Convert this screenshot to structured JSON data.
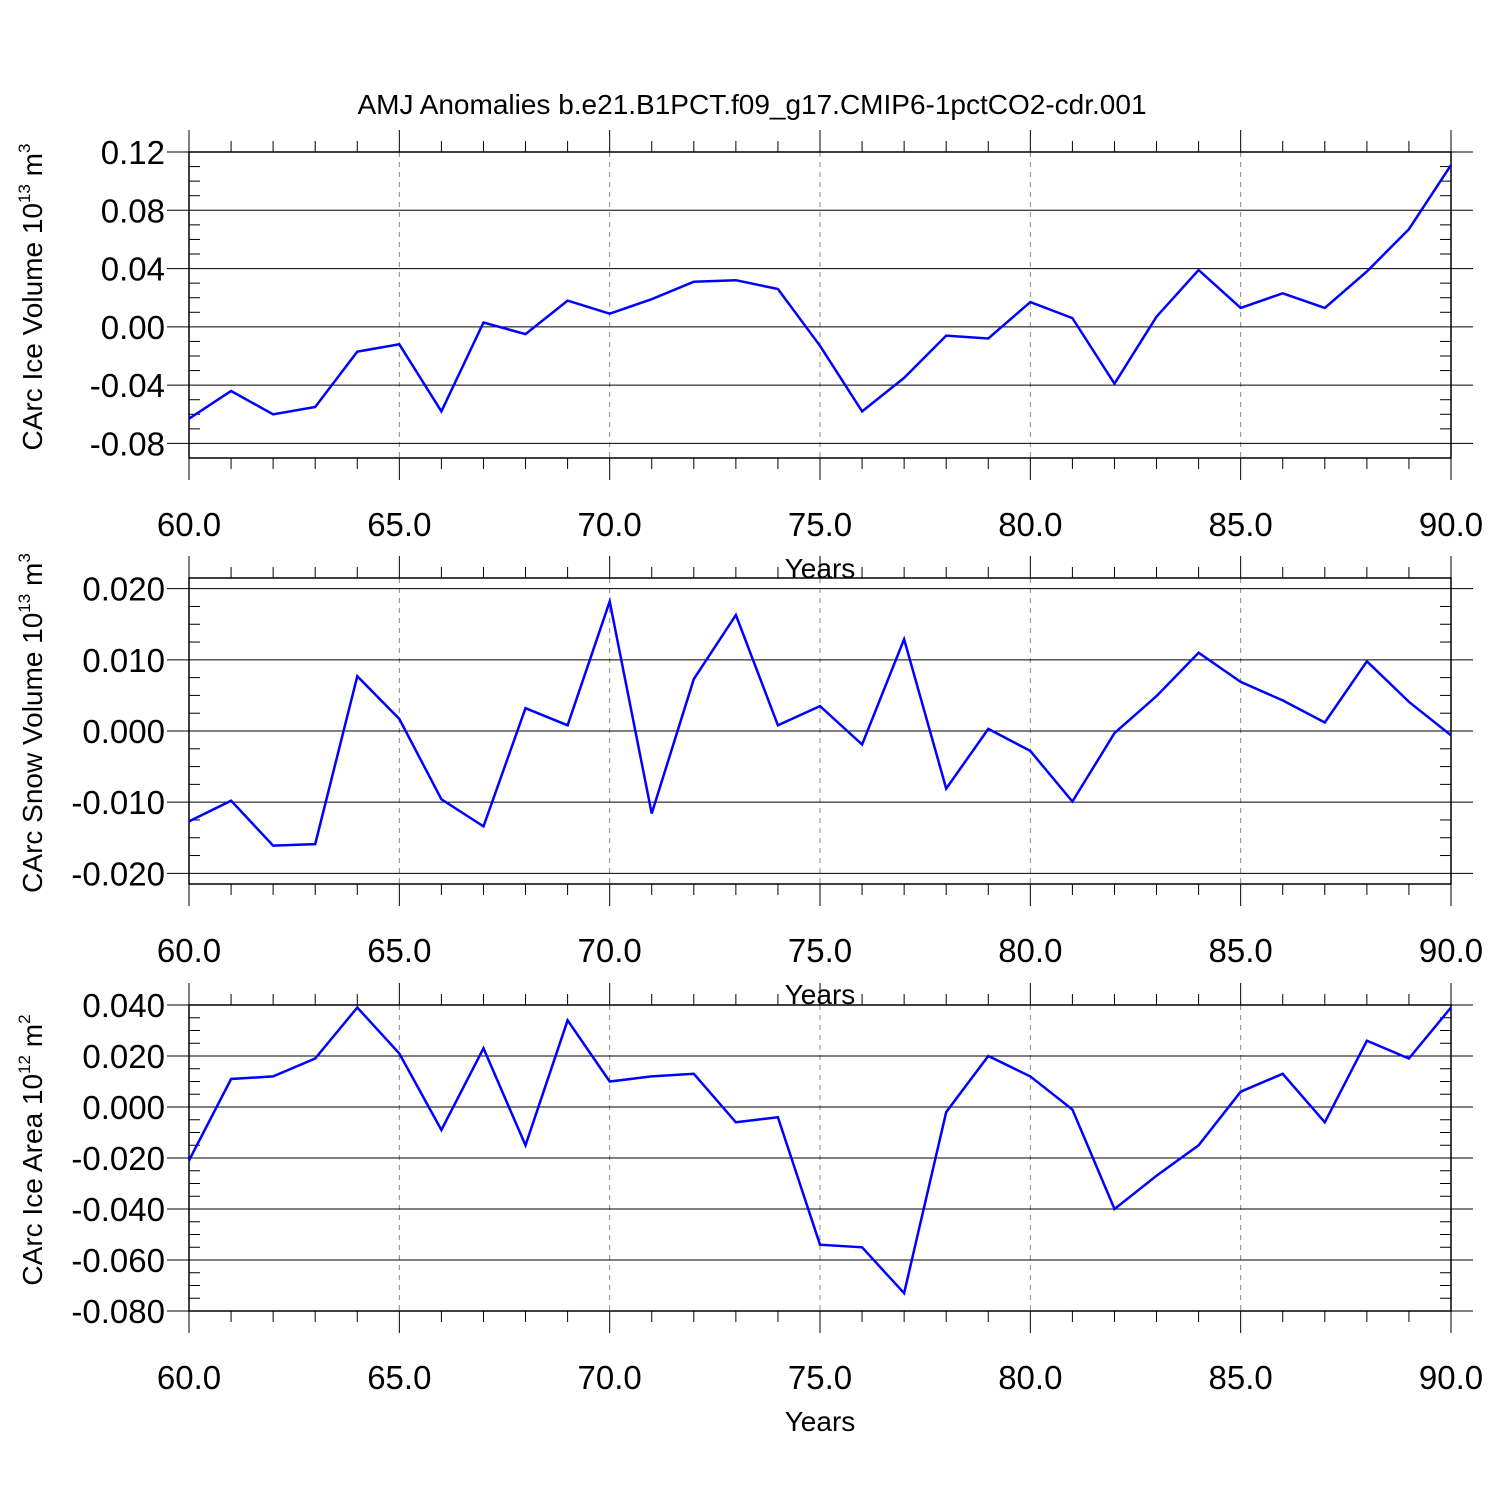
{
  "chart_data": [
    {
      "type": "line",
      "title": "AMJ Anomalies b.e21.B1PCT.f09_g17.CMIP6-1pctCO2-cdr.001",
      "xlabel": "Years",
      "ylabel": "CArc Ice Volume 10",
      "ylabel_exp": "13",
      "ylabel_unit": " m",
      "ylabel_unit_exp": "3",
      "xlim": [
        60,
        90
      ],
      "ylim": [
        -0.09,
        0.12
      ],
      "xticks": [
        60,
        65,
        70,
        75,
        80,
        85,
        90
      ],
      "xtick_labels": [
        "60.0",
        "65.0",
        "70.0",
        "75.0",
        "80.0",
        "85.0",
        "90.0"
      ],
      "yticks": [
        -0.08,
        -0.04,
        0.0,
        0.04,
        0.08,
        0.12
      ],
      "ytick_labels": [
        "-0.08",
        "-0.04",
        "0.00",
        "0.04",
        "0.08",
        "0.12"
      ],
      "grid": "x-dashed",
      "line_color": "#0000ff",
      "series": [
        {
          "x": [
            60,
            61,
            62,
            63,
            64,
            65,
            66,
            67,
            68,
            69,
            70,
            71,
            72,
            73,
            74,
            75,
            76,
            77,
            78,
            79,
            80,
            81,
            82,
            83,
            84,
            85,
            86,
            87,
            88,
            89,
            90
          ],
          "values": [
            -0.063,
            -0.044,
            -0.06,
            -0.055,
            -0.017,
            -0.012,
            -0.058,
            0.003,
            -0.005,
            0.018,
            0.009,
            0.019,
            0.031,
            0.032,
            0.026,
            -0.013,
            -0.058,
            -0.035,
            -0.006,
            -0.008,
            0.017,
            0.006,
            -0.039,
            0.007,
            0.039,
            0.013,
            0.023,
            0.013,
            0.038,
            0.067,
            0.111
          ]
        }
      ]
    },
    {
      "type": "line",
      "xlabel": "Years",
      "ylabel": "CArc Snow Volume 10",
      "ylabel_exp": "13",
      "ylabel_unit": " m",
      "ylabel_unit_exp": "3",
      "xlim": [
        60,
        90
      ],
      "ylim": [
        -0.0215,
        0.0215
      ],
      "xticks": [
        60,
        65,
        70,
        75,
        80,
        85,
        90
      ],
      "xtick_labels": [
        "60.0",
        "65.0",
        "70.0",
        "75.0",
        "80.0",
        "85.0",
        "90.0"
      ],
      "yticks": [
        -0.02,
        -0.01,
        0.0,
        0.01,
        0.02
      ],
      "ytick_labels": [
        "-0.020",
        "-0.010",
        "0.000",
        "0.010",
        "0.020"
      ],
      "grid": "x-dashed",
      "line_color": "#0000ff",
      "series": [
        {
          "x": [
            60,
            61,
            62,
            63,
            64,
            65,
            66,
            67,
            68,
            69,
            70,
            71,
            72,
            73,
            74,
            75,
            76,
            77,
            78,
            79,
            80,
            81,
            82,
            83,
            84,
            85,
            86,
            87,
            88,
            89,
            90
          ],
          "values": [
            -0.0127,
            -0.0098,
            -0.0161,
            -0.0159,
            0.0077,
            0.0017,
            -0.0096,
            -0.0134,
            0.0032,
            0.0008,
            0.0182,
            -0.0116,
            0.0073,
            0.0163,
            0.0008,
            0.0035,
            -0.0019,
            0.0129,
            -0.0081,
            0.0003,
            -0.0028,
            -0.0099,
            -0.0003,
            0.0049,
            0.011,
            0.0069,
            0.0043,
            0.0012,
            0.0098,
            0.0041,
            -0.0006
          ]
        }
      ]
    },
    {
      "type": "line",
      "xlabel": "Years",
      "ylabel": "CArc Ice Area 10",
      "ylabel_exp": "12",
      "ylabel_unit": " m",
      "ylabel_unit_exp": "2",
      "xlim": [
        60,
        90
      ],
      "ylim": [
        -0.08,
        0.04
      ],
      "xticks": [
        60,
        65,
        70,
        75,
        80,
        85,
        90
      ],
      "xtick_labels": [
        "60.0",
        "65.0",
        "70.0",
        "75.0",
        "80.0",
        "85.0",
        "90.0"
      ],
      "yticks": [
        -0.08,
        -0.06,
        -0.04,
        -0.02,
        0.0,
        0.02,
        0.04
      ],
      "ytick_labels": [
        "-0.080",
        "-0.060",
        "-0.040",
        "-0.020",
        "0.000",
        "0.020",
        "0.040"
      ],
      "grid": "x-dashed",
      "line_color": "#0000ff",
      "series": [
        {
          "x": [
            60,
            61,
            62,
            63,
            64,
            65,
            66,
            67,
            68,
            69,
            70,
            71,
            72,
            73,
            74,
            75,
            76,
            77,
            78,
            79,
            80,
            81,
            82,
            83,
            84,
            85,
            86,
            87,
            88,
            89,
            90
          ],
          "values": [
            -0.021,
            0.011,
            0.012,
            0.019,
            0.039,
            0.021,
            -0.009,
            0.023,
            -0.015,
            0.034,
            0.01,
            0.012,
            0.013,
            -0.006,
            -0.004,
            -0.054,
            -0.055,
            -0.073,
            -0.002,
            0.02,
            0.012,
            -0.001,
            -0.04,
            -0.027,
            -0.015,
            0.006,
            0.013,
            -0.006,
            0.026,
            0.019,
            0.039
          ]
        }
      ]
    }
  ]
}
